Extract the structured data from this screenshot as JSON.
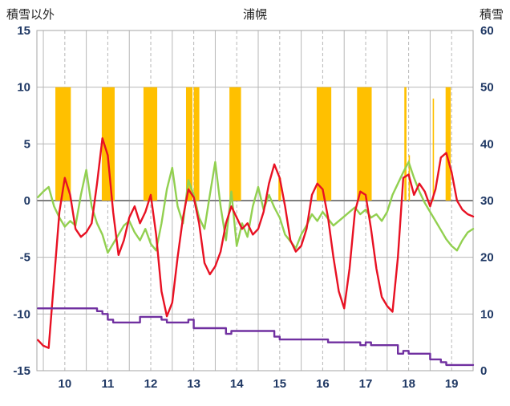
{
  "header": {
    "left_axis_title": "積雪以外",
    "title": "浦幌",
    "right_axis_title": "積雪"
  },
  "chart_data": {
    "type": "line",
    "title": "浦幌",
    "left_axis": {
      "label": "積雪以外",
      "min": -15,
      "max": 15,
      "ticks": [
        15,
        10,
        5,
        0,
        -5,
        -10,
        -15
      ]
    },
    "right_axis": {
      "label": "積雪",
      "min": 0,
      "max": 60,
      "ticks": [
        60,
        50,
        40,
        30,
        20,
        10,
        0
      ]
    },
    "x_axis": {
      "domain": [
        9.85,
        20.0
      ],
      "day_ticks": [
        10,
        11,
        12,
        13,
        14,
        15,
        16,
        17,
        18,
        19
      ],
      "grid": "solid at midnights, dashed at noons",
      "label_offset": 0.5
    },
    "t_start": 9.875,
    "t_step": 0.125,
    "series": [
      {
        "name": "red-line",
        "axis": "left",
        "color": "#e81123",
        "values": [
          -12.3,
          -12.8,
          -13,
          -7,
          -1,
          2,
          0.5,
          -2.5,
          -3.2,
          -2.8,
          -2,
          1.5,
          5.5,
          4,
          -1,
          -4.8,
          -3.5,
          -1.5,
          -0.5,
          -2,
          -1,
          0.5,
          -3,
          -8,
          -10.2,
          -9,
          -5,
          -1.5,
          1,
          0.3,
          -2,
          -5.5,
          -6.5,
          -5.8,
          -4.5,
          -2,
          -0.5,
          -1.5,
          -2.5,
          -2,
          -3,
          -2.5,
          -1,
          1.5,
          3.2,
          2,
          -0.5,
          -3.5,
          -4.5,
          -4,
          -2.5,
          0.5,
          1.5,
          1,
          -1.5,
          -5,
          -8,
          -9.5,
          -6,
          -1,
          0.8,
          0.5,
          -2.5,
          -6,
          -8.5,
          -9.3,
          -9.8,
          -5,
          2,
          2.3,
          0.5,
          1.5,
          0.8,
          -0.5,
          1,
          3.8,
          4.2,
          2.5,
          0,
          -0.8,
          -1.2,
          -1.4
        ]
      },
      {
        "name": "green-line",
        "axis": "left",
        "color": "#92d050",
        "values": [
          0.3,
          0.8,
          1.2,
          -0.5,
          -1.5,
          -2.3,
          -1.8,
          -2.2,
          0.5,
          2.7,
          -0.5,
          -2,
          -3,
          -4.6,
          -3.8,
          -3,
          -2.2,
          -1.8,
          -2.8,
          -3.5,
          -2.5,
          -3.8,
          -4.4,
          -2,
          1,
          2.9,
          -0.5,
          -2,
          1.8,
          0.5,
          -1.5,
          -2.5,
          0.5,
          3.4,
          -0.5,
          -3.5,
          0.8,
          -4,
          -2,
          -3.2,
          -0.5,
          1.2,
          -0.8,
          0.5,
          -0.6,
          -1.5,
          -3,
          -3.6,
          -4.2,
          -3,
          -2.2,
          -1.2,
          -1.8,
          -1,
          -1.6,
          -2.2,
          -1.8,
          -1.4,
          -1,
          -0.6,
          -1.2,
          -0.8,
          -1.5,
          -1.2,
          -1.8,
          -1,
          0.5,
          1.5,
          2.5,
          3.4,
          2,
          0.8,
          -0.2,
          -1,
          -1.8,
          -2.6,
          -3.4,
          -4,
          -4.4,
          -3.5,
          -2.8,
          -2.5
        ]
      },
      {
        "name": "purple-step-line",
        "axis": "right",
        "color": "#7030a0",
        "step": true,
        "values": [
          11,
          11,
          11,
          11,
          11,
          11,
          11,
          11,
          11,
          11,
          11,
          10.5,
          10,
          9,
          8.5,
          8.5,
          8.5,
          8.5,
          8.5,
          9.5,
          9.5,
          9.5,
          9.5,
          9,
          8.5,
          8.5,
          8.5,
          8.5,
          9,
          7.5,
          7.5,
          7.5,
          7.5,
          7.5,
          7.5,
          6.5,
          7,
          7,
          7,
          7,
          7,
          7,
          7,
          7,
          6,
          5.5,
          5.5,
          5.5,
          5.5,
          5.5,
          5.5,
          5.5,
          5.5,
          5.5,
          5,
          5,
          5,
          5,
          5,
          5,
          4.5,
          5,
          4.5,
          4.5,
          4.5,
          4.5,
          4.5,
          3,
          3.5,
          3,
          3,
          3,
          3,
          2,
          2,
          1.5,
          1,
          1,
          1,
          1,
          1,
          1
        ]
      }
    ],
    "sunshine_bars": {
      "name": "orange-bars",
      "axis": "left",
      "color": "#ffc000",
      "bars": [
        [
          10.28,
          10.64,
          10
        ],
        [
          11.36,
          11.66,
          10
        ],
        [
          12.33,
          12.65,
          10
        ],
        [
          13.32,
          13.47,
          10
        ],
        [
          13.5,
          13.63,
          10
        ],
        [
          14.33,
          14.6,
          10
        ],
        [
          15.47,
          15.53,
          2
        ],
        [
          16.36,
          16.7,
          10
        ],
        [
          17.3,
          17.64,
          10
        ],
        [
          18.4,
          18.45,
          10
        ],
        [
          18.5,
          18.53,
          4
        ],
        [
          19.06,
          19.09,
          9
        ],
        [
          19.36,
          19.48,
          10
        ]
      ]
    },
    "legend": "none",
    "grid": true
  },
  "colors": {
    "red": "#e81123",
    "green": "#92d050",
    "purple": "#7030a0",
    "orange": "#ffc000",
    "axis_text": "#1f3864",
    "grid_line": "#b7b7b7",
    "zero_line": "#7f7f7f",
    "border": "#a6a6a6",
    "background": "#ffffff"
  }
}
